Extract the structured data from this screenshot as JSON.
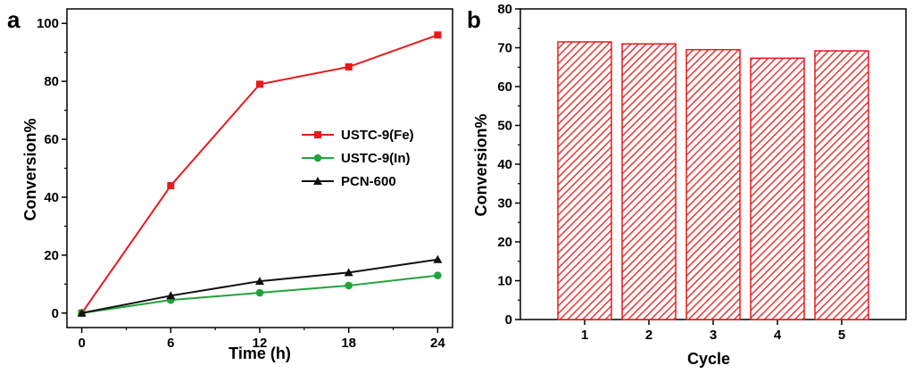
{
  "chart_data": [
    {
      "type": "line",
      "panel_label": "a",
      "xlabel": "Time (h)",
      "ylabel": "Conversion%",
      "x": [
        0,
        6,
        12,
        18,
        24
      ],
      "xticks": [
        0,
        6,
        12,
        18,
        24
      ],
      "yticks": [
        0,
        20,
        40,
        60,
        80,
        100
      ],
      "xlim": [
        -1,
        25
      ],
      "ylim": [
        -5,
        105
      ],
      "grid": false,
      "legend_placement": "center-right",
      "series": [
        {
          "name": "USTC-9(Fe)",
          "values": [
            0,
            44,
            79,
            85,
            96
          ],
          "color": "#e8191c",
          "marker": "square"
        },
        {
          "name": "USTC-9(In)",
          "values": [
            0,
            4.5,
            7,
            9.5,
            13
          ],
          "color": "#21a33c",
          "marker": "circle"
        },
        {
          "name": "PCN-600",
          "values": [
            0,
            6,
            11,
            14,
            18.5
          ],
          "color": "#111111",
          "marker": "triangle"
        }
      ]
    },
    {
      "type": "bar",
      "panel_label": "b",
      "xlabel": "Cycle",
      "ylabel": "Conversion%",
      "categories": [
        "1",
        "2",
        "3",
        "4",
        "5"
      ],
      "values": [
        71.5,
        71,
        69.5,
        67.3,
        69.2
      ],
      "yticks": [
        0,
        10,
        20,
        30,
        40,
        50,
        60,
        70,
        80
      ],
      "ylim": [
        0,
        80
      ],
      "grid": false,
      "bar_color": "#e8191c",
      "bar_pattern": "diagonal-hatch"
    }
  ]
}
